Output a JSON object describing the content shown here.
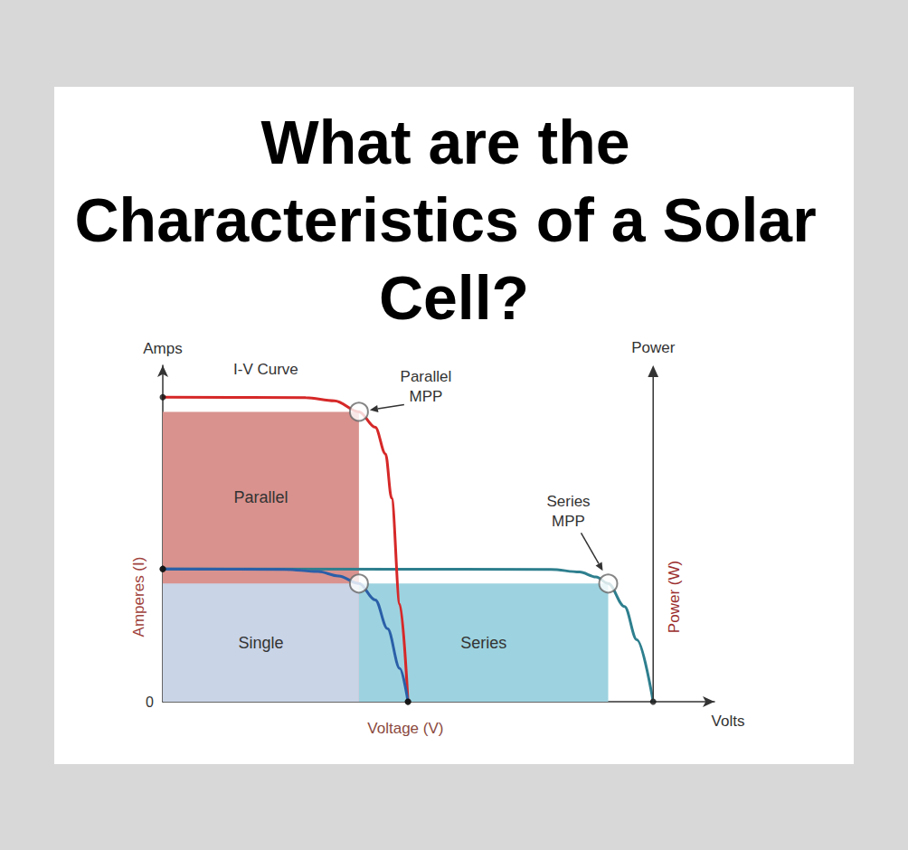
{
  "chart_data": {
    "type": "line",
    "title": "What are the Characteristics of a Solar Cell?",
    "subtitle": "I-V Curve",
    "xlabel": "Voltage (V)",
    "ylabel": "Amperes (I)",
    "x_name": "Volts",
    "y_name": "Amps",
    "power_axis": {
      "name": "Power",
      "label": "Power (W)",
      "x": 1.2
    },
    "xlim": [
      0,
      1.35
    ],
    "ylim": [
      0,
      7.6
    ],
    "yticks": [
      0
    ],
    "tick_labels": "y",
    "grid": false,
    "series": [
      {
        "name": "Series",
        "color": "#2e7f8e",
        "x": [
          0,
          0.95,
          1.02,
          1.06,
          1.09,
          1.13,
          1.16,
          1.2
        ],
        "values": [
          3.0,
          2.99,
          2.93,
          2.82,
          2.67,
          2.15,
          1.4,
          0
        ],
        "mpp": [
          1.09,
          2.67
        ]
      },
      {
        "name": "Parallel",
        "color": "#d62828",
        "x": [
          0,
          0.35,
          0.42,
          0.48,
          0.52,
          0.545,
          0.56,
          0.58,
          0.6
        ],
        "values": [
          6.88,
          6.87,
          6.8,
          6.55,
          6.2,
          5.6,
          4.6,
          2.2,
          0
        ],
        "mpp": [
          0.48,
          6.55
        ]
      },
      {
        "name": "Single",
        "color": "#2a5fa8",
        "x": [
          0,
          0.3,
          0.38,
          0.43,
          0.48,
          0.52,
          0.55,
          0.58,
          0.6
        ],
        "values": [
          3.0,
          2.99,
          2.94,
          2.84,
          2.67,
          2.3,
          1.65,
          0.75,
          0
        ],
        "mpp": [
          0.48,
          2.67
        ]
      }
    ],
    "annotations": [
      {
        "text": "Parallel\nMPP",
        "series": "Parallel"
      },
      {
        "text": "Series\nMPP",
        "series": "Series"
      }
    ]
  }
}
